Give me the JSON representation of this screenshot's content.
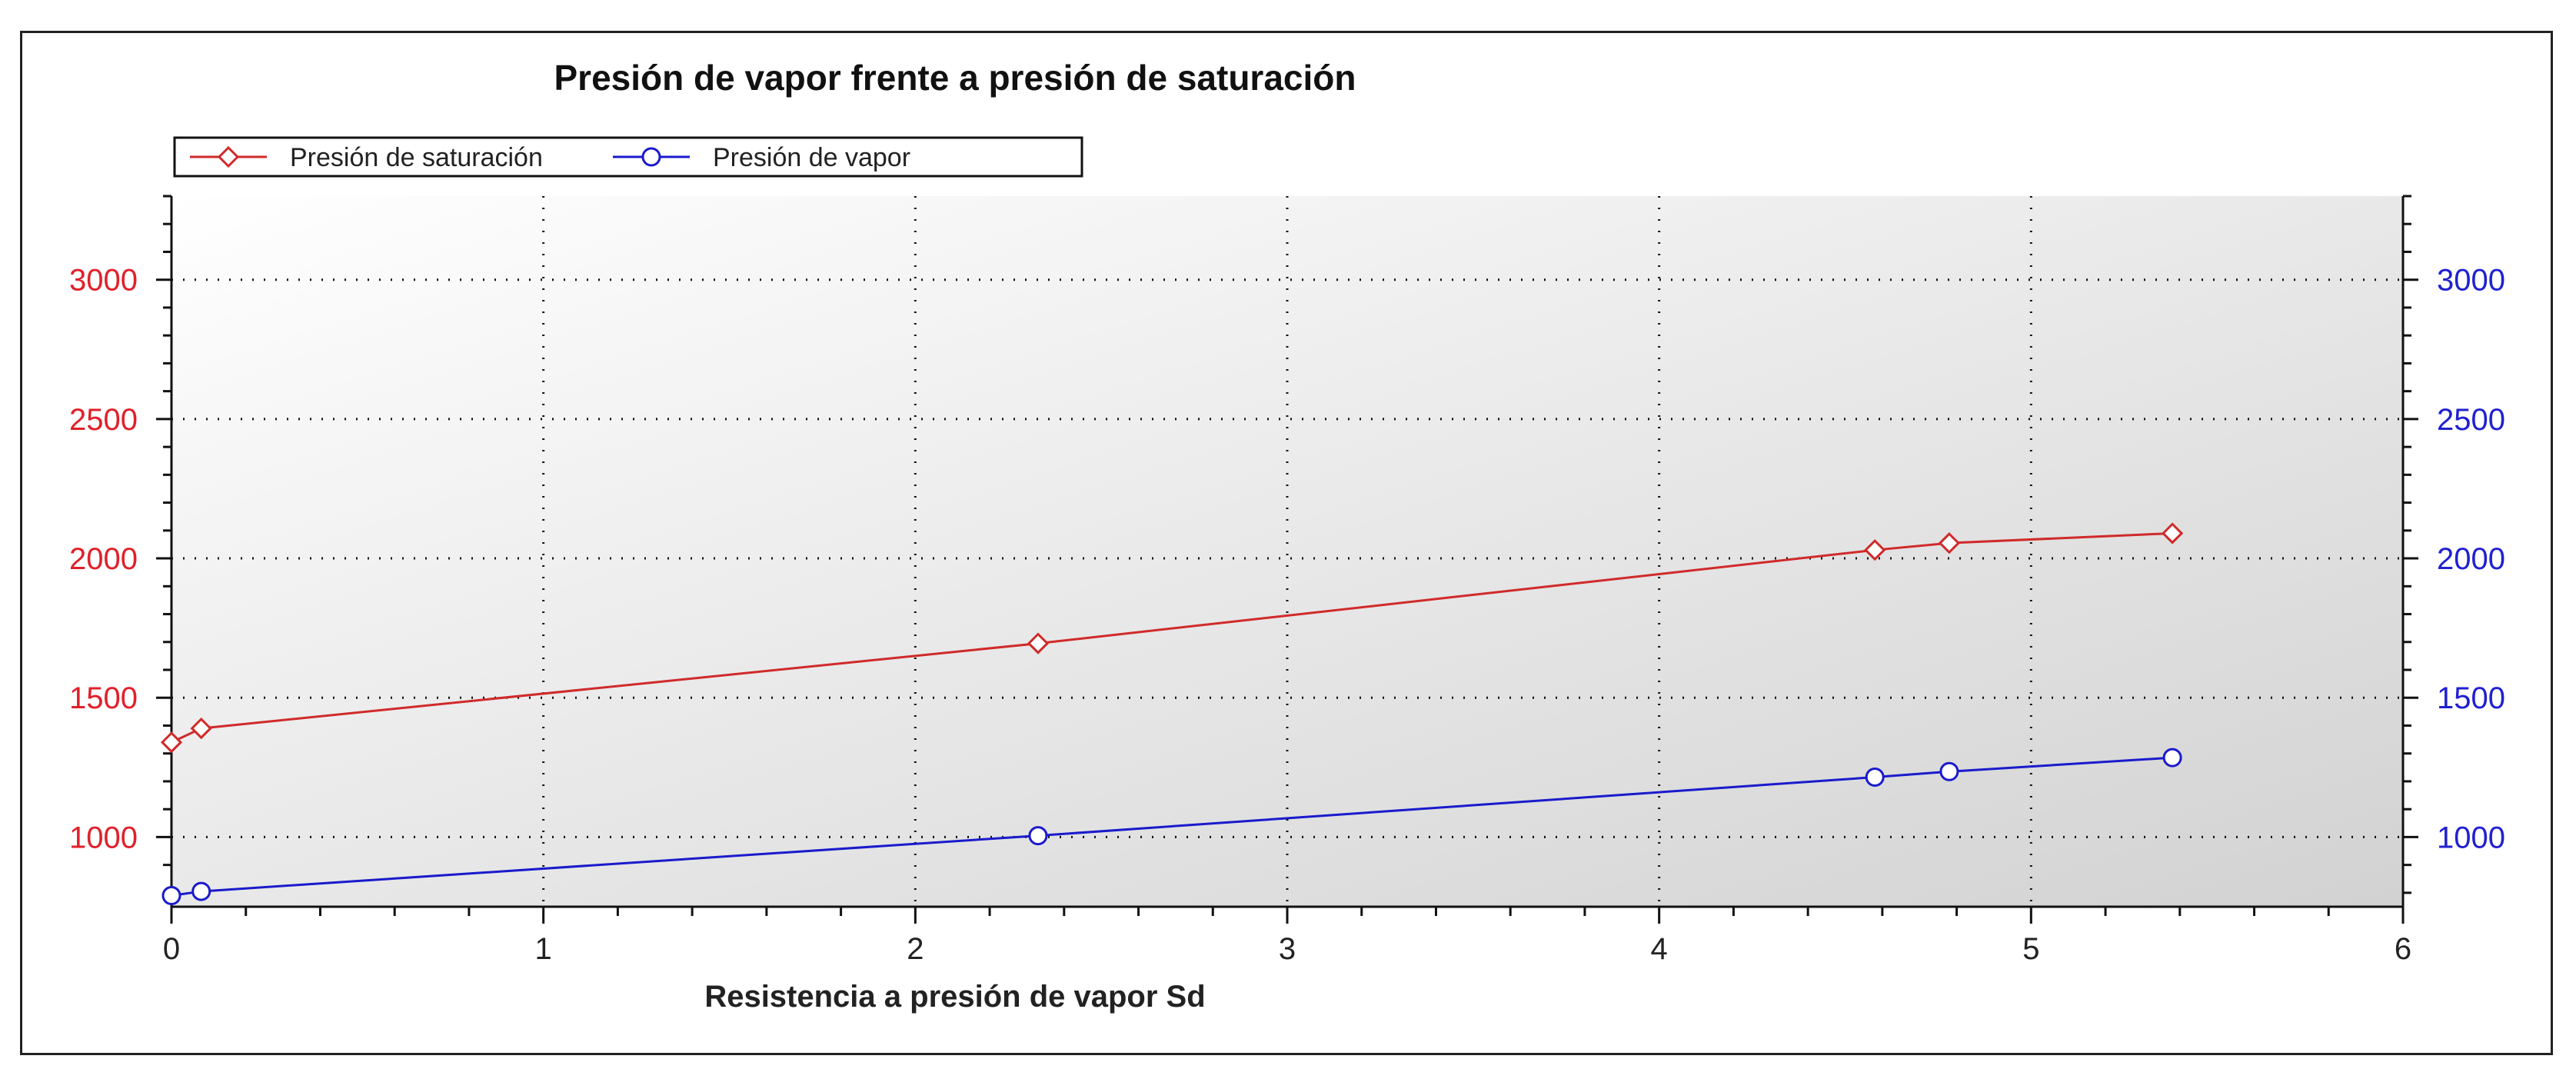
{
  "chart_data": {
    "type": "line",
    "title": "Presión de vapor frente a presión de saturación",
    "xlabel": "Resistencia a presión de vapor Sd",
    "ylabel": "",
    "xlim": [
      0,
      6
    ],
    "ylim": [
      750,
      3300
    ],
    "x_ticks": [
      0,
      1,
      2,
      3,
      4,
      5,
      6
    ],
    "y_ticks": [
      1000,
      1500,
      2000,
      2500,
      3000
    ],
    "grid": true,
    "legend_position": "top-left",
    "axis_colors": {
      "left": "#e0202a",
      "right": "#2020d0"
    },
    "series": [
      {
        "name": "Presión de saturación",
        "color": "#d02a2a",
        "marker": "diamond",
        "x": [
          0.0,
          0.08,
          2.33,
          4.58,
          4.78,
          5.38
        ],
        "y": [
          1340,
          1390,
          1695,
          2030,
          2055,
          2090
        ]
      },
      {
        "name": "Presión de vapor",
        "color": "#1a1acc",
        "marker": "circle",
        "x": [
          0.0,
          0.08,
          2.33,
          4.58,
          4.78,
          5.38
        ],
        "y": [
          790,
          805,
          1005,
          1215,
          1235,
          1285
        ]
      }
    ]
  }
}
